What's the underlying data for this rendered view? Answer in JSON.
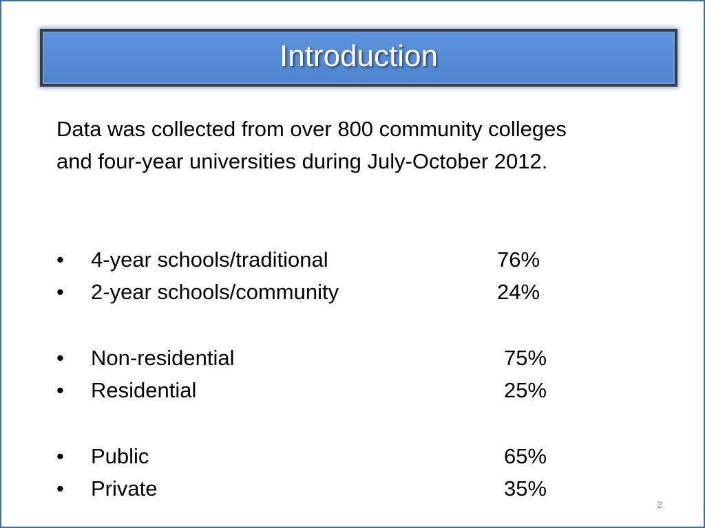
{
  "slide": {
    "title": "Introduction",
    "intro_text": "Data was collected from over 800 community colleges and four-year universities during July-October 2012.",
    "bullet_char": "•",
    "groups": [
      {
        "items": [
          {
            "label": "4-year schools/traditional",
            "value": "76%"
          },
          {
            "label": "2-year schools/community",
            "value": "24%"
          }
        ]
      },
      {
        "items": [
          {
            "label": "Non-residential",
            "value": "75%"
          },
          {
            "label": "Residential",
            "value": "25%"
          }
        ]
      },
      {
        "items": [
          {
            "label": "Public",
            "value": "65%"
          },
          {
            "label": "Private",
            "value": "35%"
          }
        ]
      }
    ],
    "page_number": "2"
  },
  "colors": {
    "title_bar": "#4d84cf",
    "title_border": "#3a3a3a",
    "slide_border": "#3d6fa8"
  }
}
